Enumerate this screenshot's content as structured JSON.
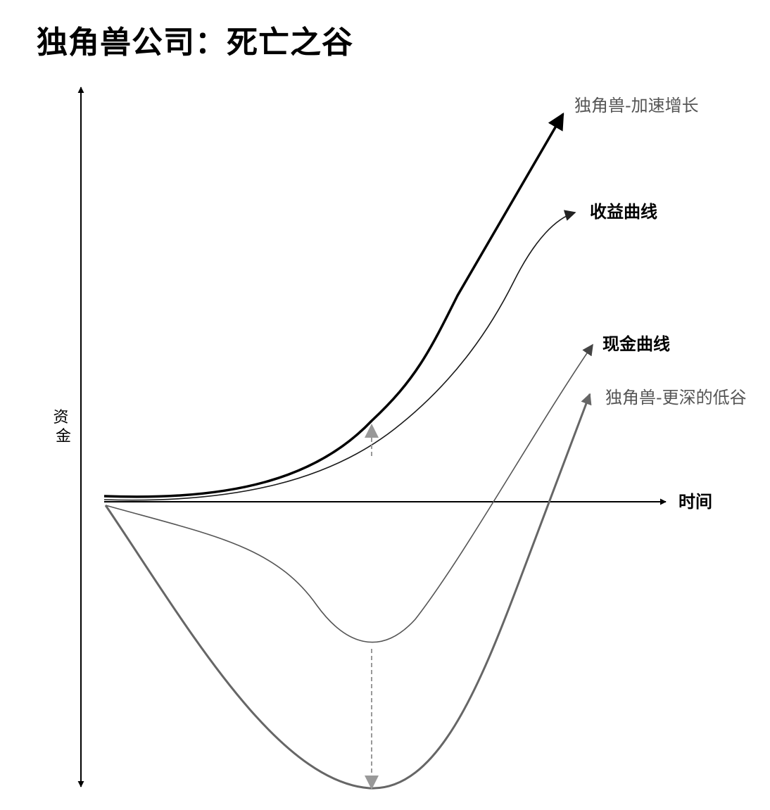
{
  "title": "独角兽公司：死亡之谷",
  "axes": {
    "y_label": "资金",
    "x_label": "时间"
  },
  "curves": {
    "unicorn_accel": {
      "label": "独角兽-加速增长",
      "color": "#000000",
      "label_color": "#555555"
    },
    "revenue": {
      "label": "收益曲线",
      "color": "#1a1a1a",
      "label_color": "#000000"
    },
    "cash": {
      "label": "现金曲线",
      "color": "#555555",
      "label_color": "#000000"
    },
    "unicorn_valley": {
      "label": "独角兽-更深的低谷",
      "color": "#666666",
      "label_color": "#555555"
    }
  },
  "annotation_color": "#999999"
}
